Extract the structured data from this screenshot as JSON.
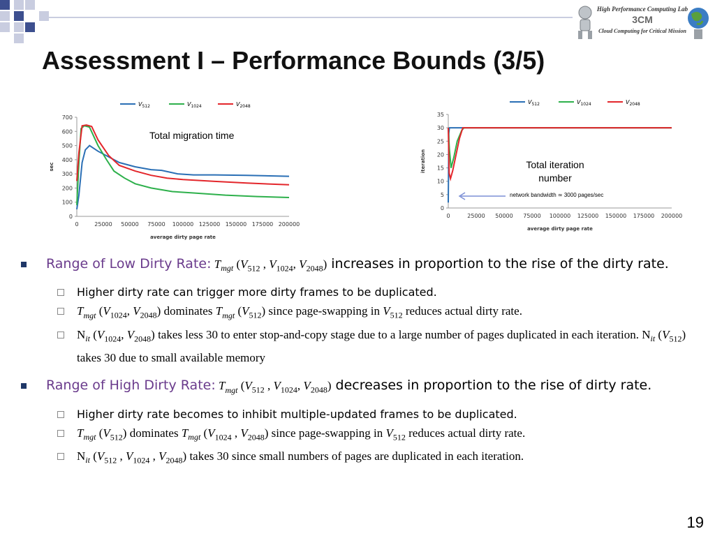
{
  "slide": {
    "title": "Assessment I – Performance Bounds (3/5)",
    "page_number": "19",
    "logo": {
      "line1": "High Performance Computing Lab",
      "line2": "3CM",
      "line3": "Cloud Computing for Critical Mission"
    },
    "colors": {
      "bullet_accent": "#6a3b8c",
      "bullet_marker": "#1f3767",
      "deco_square": "#3d4f8f"
    }
  },
  "chart_data": [
    {
      "type": "line",
      "xlabel": "average dirty page rate",
      "ylabel": "sec",
      "x_ticks": [
        0,
        25000,
        50000,
        75000,
        100000,
        125000,
        150000,
        175000,
        200000
      ],
      "y_ticks": [
        0,
        100,
        200,
        300,
        400,
        500,
        600,
        700
      ],
      "xlim": [
        0,
        200000
      ],
      "ylim": [
        0,
        700
      ],
      "annotation": "Total migration time",
      "legend_position": "top",
      "series": [
        {
          "name": "V512",
          "color": "#2a6fb5",
          "points": [
            [
              0,
              50
            ],
            [
              2000,
              150
            ],
            [
              5000,
              380
            ],
            [
              8000,
              470
            ],
            [
              12000,
              500
            ],
            [
              20000,
              460
            ],
            [
              30000,
              420
            ],
            [
              40000,
              380
            ],
            [
              55000,
              350
            ],
            [
              70000,
              330
            ],
            [
              80000,
              325
            ],
            [
              95000,
              300
            ],
            [
              110000,
              293
            ],
            [
              130000,
              293
            ],
            [
              160000,
              290
            ],
            [
              200000,
              283
            ]
          ]
        },
        {
          "name": "V1024",
          "color": "#2db04b",
          "points": [
            [
              0,
              80
            ],
            [
              2000,
              380
            ],
            [
              4000,
              620
            ],
            [
              7000,
              640
            ],
            [
              12000,
              630
            ],
            [
              20000,
              500
            ],
            [
              28000,
              400
            ],
            [
              35000,
              320
            ],
            [
              45000,
              270
            ],
            [
              55000,
              230
            ],
            [
              70000,
              200
            ],
            [
              90000,
              175
            ],
            [
              110000,
              165
            ],
            [
              140000,
              150
            ],
            [
              170000,
              140
            ],
            [
              200000,
              133
            ]
          ]
        },
        {
          "name": "V2048",
          "color": "#e3262b",
          "points": [
            [
              0,
              250
            ],
            [
              2000,
              450
            ],
            [
              5000,
              640
            ],
            [
              9000,
              645
            ],
            [
              14000,
              635
            ],
            [
              20000,
              540
            ],
            [
              30000,
              430
            ],
            [
              40000,
              360
            ],
            [
              55000,
              320
            ],
            [
              70000,
              290
            ],
            [
              85000,
              270
            ],
            [
              100000,
              260
            ],
            [
              130000,
              247
            ],
            [
              160000,
              235
            ],
            [
              200000,
              223
            ]
          ]
        }
      ]
    },
    {
      "type": "line",
      "xlabel": "average dirty page rate",
      "ylabel": "iteration",
      "x_ticks": [
        0,
        25000,
        50000,
        75000,
        100000,
        125000,
        150000,
        175000,
        200000
      ],
      "y_ticks": [
        0,
        5,
        10,
        15,
        20,
        25,
        30,
        35
      ],
      "xlim": [
        0,
        200000
      ],
      "ylim": [
        0,
        35
      ],
      "annotation": "Total iteration\nnumber",
      "arrow_note": "network bandwidth ≃ 3000 pages/sec",
      "legend_position": "top",
      "series": [
        {
          "name": "V512",
          "color": "#2a6fb5",
          "points": [
            [
              0,
              2
            ],
            [
              500,
              28
            ],
            [
              1000,
              30
            ],
            [
              200000,
              30
            ]
          ]
        },
        {
          "name": "V1024",
          "color": "#2db04b",
          "points": [
            [
              0,
              30
            ],
            [
              1000,
              22
            ],
            [
              2500,
              15
            ],
            [
              5000,
              19
            ],
            [
              8000,
              25
            ],
            [
              12000,
              29
            ],
            [
              14000,
              30
            ],
            [
              200000,
              30
            ]
          ]
        },
        {
          "name": "V2048",
          "color": "#e3262b",
          "points": [
            [
              0,
              30
            ],
            [
              800,
              13
            ],
            [
              2000,
              11
            ],
            [
              4000,
              14
            ],
            [
              7000,
              20
            ],
            [
              10000,
              26
            ],
            [
              13000,
              30
            ],
            [
              200000,
              30
            ]
          ]
        }
      ]
    }
  ],
  "bullets": [
    {
      "accent": "Range of Low Dirty Rate:",
      "formula": " T_mgt (V_512 , V_1024, V_2048)",
      "rest": " increases in proportion to the rise of the dirty rate.",
      "subs": [
        {
          "text": "Higher dirty rate can trigger more dirty frames  to be duplicated."
        },
        {
          "text": "T_mgt (V_1024, V_2048) dominates T_mgt (V_512) since page-swapping in  V_512 reduces actual dirty rate."
        },
        {
          "text": "N_it (V_1024, V_2048) takes less 30 to enter stop-and-copy stage due to a large number of pages duplicated in each iteration. N_it (V_512) takes 30 due to small available memory"
        }
      ]
    },
    {
      "accent": "Range of High Dirty Rate:",
      "formula": "  T_mgt (V_512 , V_1024, V_2048)",
      "rest": " decreases in proportion to the rise of dirty rate.",
      "subs": [
        {
          "text": "Higher dirty rate becomes to inhibit multiple-updated frames to be duplicated."
        },
        {
          "text": "T_mgt (V_512) dominates T_mgt (V_1024 , V_2048) since page-swapping in V_512 reduces actual dirty rate."
        },
        {
          "text": "N_it (V_512 , V_1024 , V_2048) takes 30 since small numbers of pages are duplicated in each iteration."
        }
      ]
    }
  ]
}
